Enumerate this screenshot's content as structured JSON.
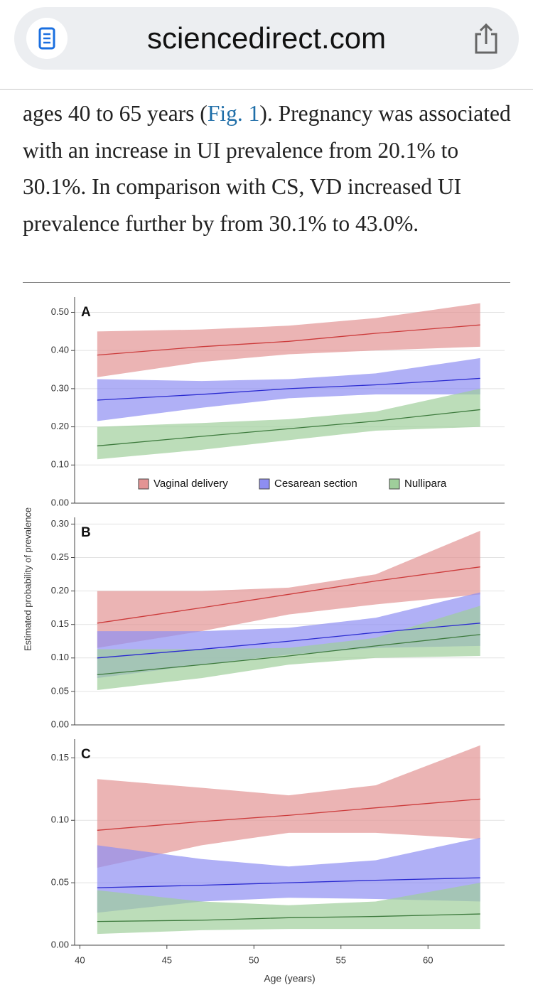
{
  "browser": {
    "url": "sciencedirect.com"
  },
  "article": {
    "paragraph": [
      "ages 40 to 65 years (",
      "Fig. 1",
      "). Pregnancy was associated with an increase in UI prevalence from 20.1% to 30.1%. In comparison with CS, VD increased UI prevalence further by from 30.1% to 43.0%."
    ]
  },
  "figure": {
    "y_label": "Estimated probability of prevalence"
  },
  "chart_data": [
    {
      "type": "line",
      "panel_label": "A",
      "legend": true,
      "grid": true,
      "x": [
        41,
        47,
        52,
        57,
        63
      ],
      "xlim": [
        39.7,
        64.4
      ],
      "ylim": [
        0,
        0.54
      ],
      "yticks": [
        {
          "value": 0,
          "label": "0.00"
        },
        {
          "value": 0.1,
          "label": "0.10"
        },
        {
          "value": 0.2,
          "label": "0.20"
        },
        {
          "value": 0.3,
          "label": "0.30"
        },
        {
          "value": 0.4,
          "label": "0.40"
        },
        {
          "value": 0.5,
          "label": "0.50"
        }
      ],
      "series": [
        {
          "name": "Vaginal delivery",
          "color": "#cc3b3b",
          "band_color": "#e39494",
          "values": [
            0.388,
            0.41,
            0.424,
            0.445,
            0.467
          ],
          "lower": [
            0.33,
            0.37,
            0.39,
            0.4,
            0.41
          ],
          "upper": [
            0.45,
            0.455,
            0.465,
            0.485,
            0.524
          ]
        },
        {
          "name": "Cesarean section",
          "color": "#2a2ad0",
          "band_color": "#8e8ef2",
          "values": [
            0.27,
            0.285,
            0.3,
            0.31,
            0.327
          ],
          "lower": [
            0.215,
            0.25,
            0.275,
            0.285,
            0.285
          ],
          "upper": [
            0.325,
            0.32,
            0.325,
            0.34,
            0.38
          ]
        },
        {
          "name": "Nullipara",
          "color": "#3d7a3d",
          "band_color": "#9fcf9b",
          "values": [
            0.15,
            0.175,
            0.195,
            0.215,
            0.245
          ],
          "lower": [
            0.115,
            0.14,
            0.165,
            0.19,
            0.2
          ],
          "upper": [
            0.2,
            0.21,
            0.22,
            0.24,
            0.3
          ]
        }
      ]
    },
    {
      "type": "line",
      "panel_label": "B",
      "grid": true,
      "x": [
        41,
        47,
        52,
        57,
        63
      ],
      "xlim": [
        39.7,
        64.4
      ],
      "ylim": [
        0,
        0.31
      ],
      "yticks": [
        {
          "value": 0,
          "label": "0.00"
        },
        {
          "value": 0.05,
          "label": "0.05"
        },
        {
          "value": 0.1,
          "label": "0.10"
        },
        {
          "value": 0.15,
          "label": "0.15"
        },
        {
          "value": 0.2,
          "label": "0.20"
        },
        {
          "value": 0.25,
          "label": "0.25"
        },
        {
          "value": 0.3,
          "label": "0.30"
        }
      ],
      "series": [
        {
          "color": "#cc3b3b",
          "band_color": "#e39494",
          "values": [
            0.152,
            0.175,
            0.195,
            0.215,
            0.236
          ],
          "lower": [
            0.115,
            0.14,
            0.165,
            0.18,
            0.195
          ],
          "upper": [
            0.2,
            0.2,
            0.205,
            0.225,
            0.29
          ]
        },
        {
          "color": "#2a2ad0",
          "band_color": "#8e8ef2",
          "values": [
            0.1,
            0.113,
            0.125,
            0.138,
            0.152
          ],
          "lower": [
            0.07,
            0.09,
            0.105,
            0.115,
            0.118
          ],
          "upper": [
            0.14,
            0.14,
            0.145,
            0.16,
            0.198
          ]
        },
        {
          "color": "#3d7a3d",
          "band_color": "#9fcf9b",
          "values": [
            0.075,
            0.09,
            0.103,
            0.118,
            0.135
          ],
          "lower": [
            0.052,
            0.07,
            0.09,
            0.1,
            0.103
          ],
          "upper": [
            0.113,
            0.113,
            0.115,
            0.13,
            0.178
          ]
        }
      ]
    },
    {
      "type": "line",
      "panel_label": "C",
      "grid": true,
      "x_label": "Age (years)",
      "x": [
        41,
        47,
        52,
        57,
        63
      ],
      "xlim": [
        39.7,
        64.4
      ],
      "ylim": [
        0,
        0.165
      ],
      "xticks": [
        40,
        45,
        50,
        55,
        60
      ],
      "yticks": [
        {
          "value": 0,
          "label": "0.00"
        },
        {
          "value": 0.05,
          "label": "0.05"
        },
        {
          "value": 0.1,
          "label": "0.10"
        },
        {
          "value": 0.15,
          "label": "0.15"
        }
      ],
      "series": [
        {
          "color": "#cc3b3b",
          "band_color": "#e39494",
          "values": [
            0.092,
            0.099,
            0.104,
            0.11,
            0.117
          ],
          "lower": [
            0.062,
            0.08,
            0.09,
            0.09,
            0.085
          ],
          "upper": [
            0.133,
            0.126,
            0.12,
            0.128,
            0.16
          ]
        },
        {
          "color": "#2a2ad0",
          "band_color": "#8e8ef2",
          "values": [
            0.046,
            0.048,
            0.05,
            0.052,
            0.054
          ],
          "lower": [
            0.026,
            0.035,
            0.038,
            0.037,
            0.035
          ],
          "upper": [
            0.08,
            0.069,
            0.063,
            0.068,
            0.086
          ]
        },
        {
          "color": "#3d7a3d",
          "band_color": "#9fcf9b",
          "values": [
            0.019,
            0.02,
            0.022,
            0.023,
            0.025
          ],
          "lower": [
            0.009,
            0.012,
            0.013,
            0.013,
            0.013
          ],
          "upper": [
            0.044,
            0.035,
            0.032,
            0.035,
            0.05
          ]
        }
      ]
    }
  ]
}
